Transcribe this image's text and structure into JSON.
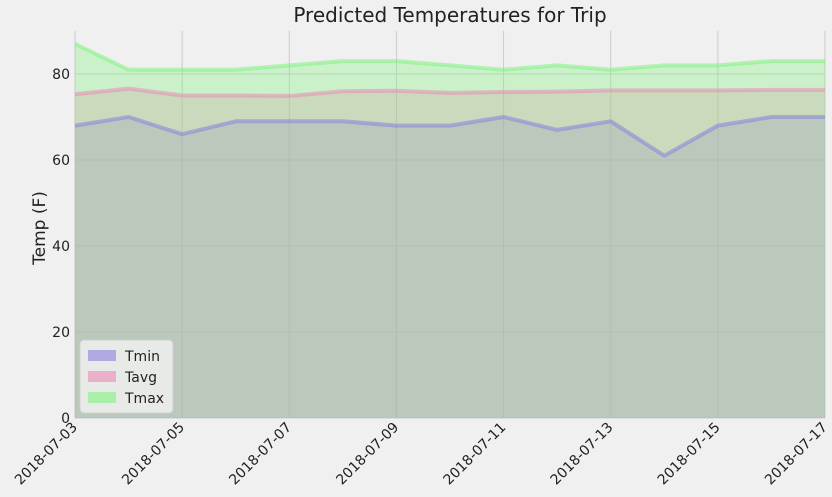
{
  "chart_data": {
    "type": "area",
    "title": "Predicted Temperatures for Trip",
    "xlabel": "",
    "ylabel": "Temp (F)",
    "x": [
      "2018-07-03",
      "2018-07-04",
      "2018-07-05",
      "2018-07-06",
      "2018-07-07",
      "2018-07-08",
      "2018-07-09",
      "2018-07-10",
      "2018-07-11",
      "2018-07-12",
      "2018-07-13",
      "2018-07-14",
      "2018-07-15",
      "2018-07-16",
      "2018-07-17"
    ],
    "xticks": [
      "2018-07-03",
      "2018-07-05",
      "2018-07-07",
      "2018-07-09",
      "2018-07-11",
      "2018-07-13",
      "2018-07-15",
      "2018-07-17"
    ],
    "yticks": [
      0,
      20,
      40,
      60,
      80
    ],
    "ylim": [
      0,
      90
    ],
    "grid": true,
    "legend_position": "lower-left",
    "stacked": false,
    "series": [
      {
        "name": "Tmin",
        "color": "#8a7fe0",
        "values": [
          68,
          70,
          66,
          69,
          69,
          69,
          68,
          68,
          70,
          67,
          69,
          61,
          68,
          70,
          70
        ]
      },
      {
        "name": "Tavg",
        "color": "#e98ab4",
        "values": [
          75.3,
          76.6,
          75.0,
          75.0,
          74.9,
          76.0,
          76.1,
          75.6,
          75.8,
          75.9,
          76.2,
          76.2,
          76.2,
          76.3,
          76.3
        ]
      },
      {
        "name": "Tmax",
        "color": "#7ff27f",
        "values": [
          87,
          81,
          81,
          81,
          82,
          83,
          83,
          82,
          81,
          82,
          81,
          82,
          82,
          83,
          83
        ]
      }
    ]
  }
}
